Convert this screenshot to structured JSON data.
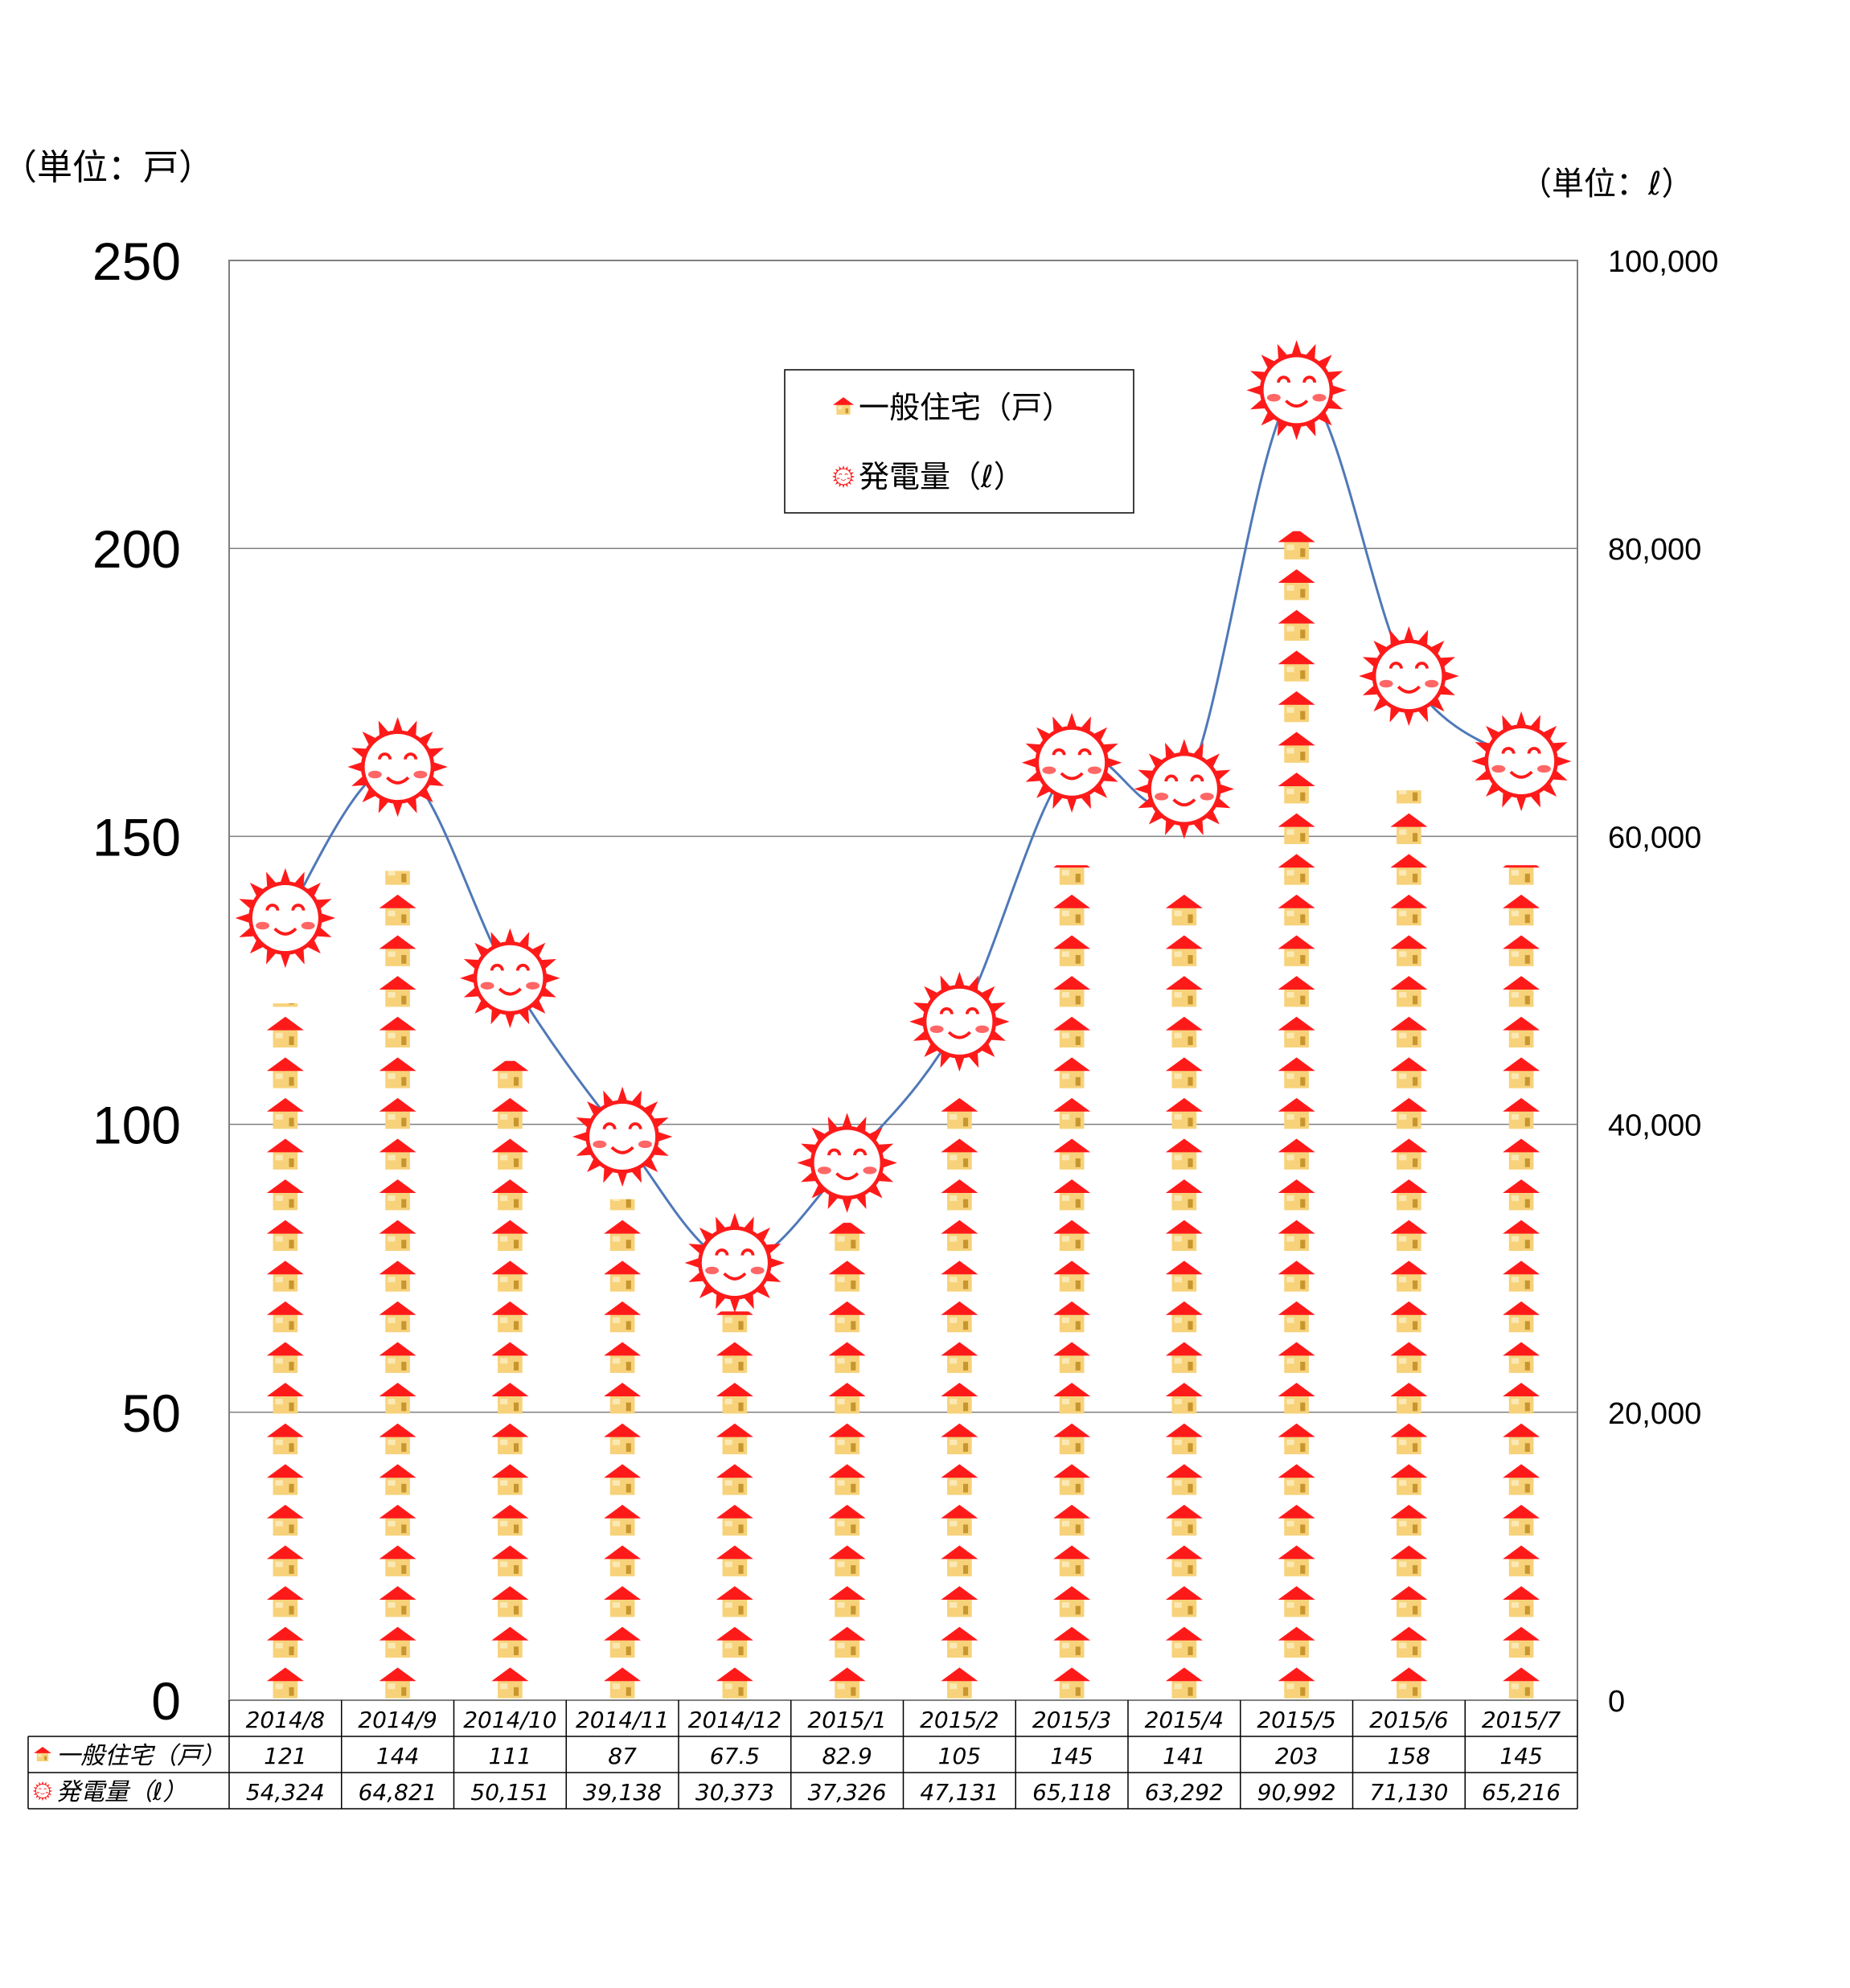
{
  "units": {
    "left": "（単位：戸）",
    "right": "（単位：ℓ）"
  },
  "legend": {
    "houses": "一般住宅（戸）",
    "power": "発電量（ℓ）"
  },
  "colors": {
    "roof": "#ff1a1a",
    "wall": "#f7d27a",
    "door": "#c8962e",
    "sun": "#ff1a1a",
    "line": "#4f78b8",
    "grid": "#7f7f7f"
  },
  "icons": {
    "houses": "house-icon",
    "power": "smiling-sun-icon"
  },
  "chart_data": {
    "type": "bar",
    "categories": [
      "2014/8",
      "2014/9",
      "2014/10",
      "2014/11",
      "2014/12",
      "2015/1",
      "2015/2",
      "2015/3",
      "2015/4",
      "2015/5",
      "2015/6",
      "2015/7"
    ],
    "series": [
      {
        "name": "一般住宅（戸）",
        "type": "bar",
        "axis": "left",
        "values": [
          121,
          144,
          111,
          87,
          67.5,
          82.9,
          105,
          145,
          141,
          203,
          158,
          145
        ],
        "labels": [
          "121",
          "144",
          "111",
          "87",
          "67.5",
          "82.9",
          "105",
          "145",
          "141",
          "203",
          "158",
          "145"
        ]
      },
      {
        "name": "発電量（ℓ）",
        "type": "line",
        "axis": "right",
        "values": [
          54324,
          64821,
          50151,
          39138,
          30373,
          37326,
          47131,
          65118,
          63292,
          90992,
          71130,
          65216
        ],
        "labels": [
          "54,324",
          "64,821",
          "50,151",
          "39,138",
          "30,373",
          "37,326",
          "47,131",
          "65,118",
          "63,292",
          "90,992",
          "71,130",
          "65,216"
        ]
      }
    ],
    "y_left": {
      "range": [
        0,
        250
      ],
      "ticks": [
        "0",
        "50",
        "100",
        "150",
        "200",
        "250"
      ],
      "tick_values": [
        0,
        50,
        100,
        150,
        200,
        250
      ]
    },
    "y_right": {
      "range": [
        0,
        100000
      ],
      "ticks": [
        "0",
        "20,000",
        "40,000",
        "60,000",
        "80,000",
        "100,000"
      ],
      "tick_values": [
        0,
        20000,
        40000,
        60000,
        80000,
        100000
      ]
    },
    "grid": true,
    "legend_position": "top-center",
    "data_table": true
  }
}
